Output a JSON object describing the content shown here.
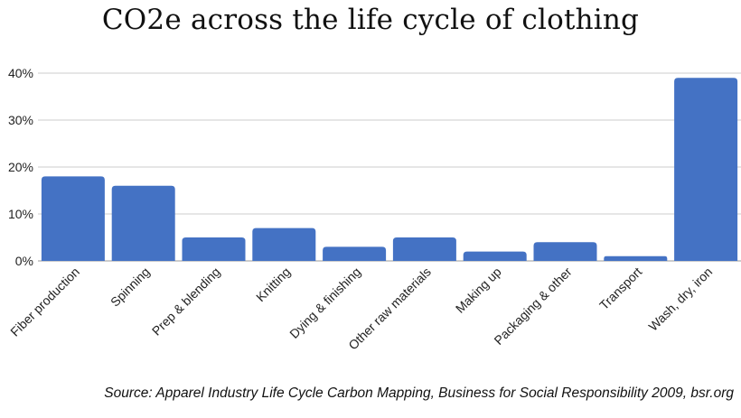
{
  "title": "CO2e across the life cycle of clothing",
  "source": "Source: Apparel Industry Life Cycle Carbon Mapping, Business for Social Responsibility 2009, bsr.org",
  "chart_data": {
    "type": "bar",
    "title": "CO2e across the life cycle of clothing",
    "xlabel": "",
    "ylabel": "",
    "categories": [
      "Fiber production",
      "Spinning",
      "Prep & blending",
      "Knitting",
      "Dying & finishing",
      "Other raw materials",
      "Making up",
      "Packaging & other",
      "Transport",
      "Wash, dry, iron"
    ],
    "values": [
      18,
      16,
      5,
      7,
      3,
      5,
      2,
      4,
      1,
      39
    ],
    "ylim": [
      0,
      40
    ],
    "yticks": [
      "0%",
      "10%",
      "20%",
      "30%",
      "40%"
    ],
    "grid": true,
    "legend": "none",
    "bar_color": "#4472c4",
    "grid_color": "#cccccc"
  }
}
